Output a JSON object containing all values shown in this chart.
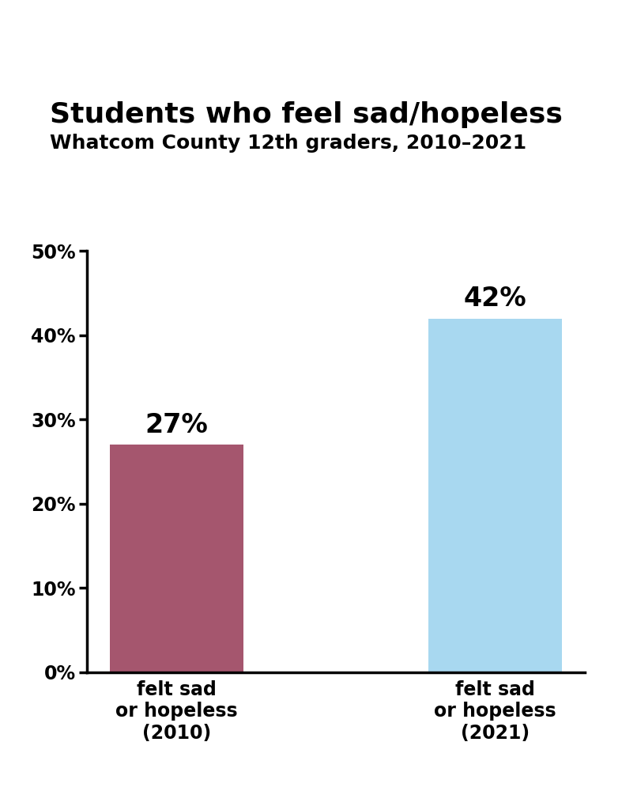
{
  "title": "Students who feel sad/hopeless",
  "subtitle": "Whatcom County 12th graders, 2010–2021",
  "categories": [
    "felt sad\nor hopeless\n(2010)",
    "felt sad\nor hopeless\n(2021)"
  ],
  "values": [
    27,
    42
  ],
  "bar_colors": [
    "#a5566e",
    "#a8d8f0"
  ],
  "value_labels": [
    "27%",
    "42%"
  ],
  "ylim": [
    0,
    50
  ],
  "yticks": [
    0,
    10,
    20,
    30,
    40,
    50
  ],
  "ytick_labels": [
    "0%",
    "10%",
    "20%",
    "30%",
    "40%",
    "50%"
  ],
  "background_color": "#ffffff",
  "title_fontsize": 26,
  "subtitle_fontsize": 18,
  "tick_label_fontsize": 17,
  "bar_label_fontsize": 24,
  "xlabel_fontsize": 17
}
